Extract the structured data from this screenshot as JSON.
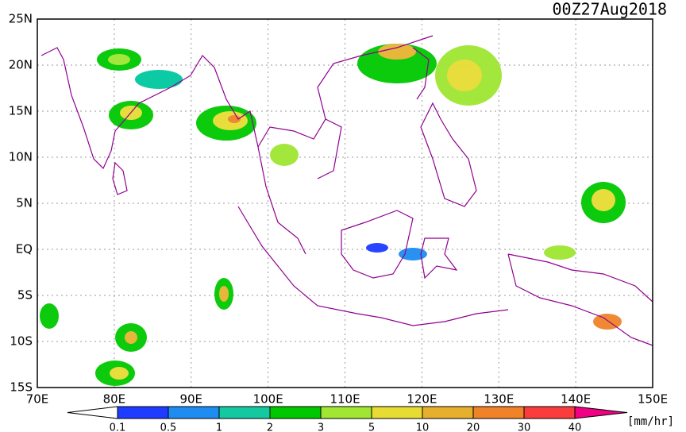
{
  "title": "00Z27Aug2018",
  "lat_labels": [
    "25N",
    "20N",
    "15N",
    "10N",
    "5N",
    "EQ",
    "5S",
    "10S",
    "15S"
  ],
  "lon_labels": [
    "70E",
    "80E",
    "90E",
    "100E",
    "110E",
    "120E",
    "130E",
    "140E",
    "150E"
  ],
  "colorbar": {
    "labels": [
      "0.1",
      "0.5",
      "1",
      "2",
      "3",
      "5",
      "10",
      "20",
      "30",
      "40"
    ],
    "colors": [
      "#1e3cff",
      "#1e8cf0",
      "#14c8a0",
      "#00c800",
      "#a0e632",
      "#e6dc32",
      "#e6af2d",
      "#f08228",
      "#fa3c3c",
      "#f00082"
    ],
    "unit": "[mm/hr]"
  }
}
